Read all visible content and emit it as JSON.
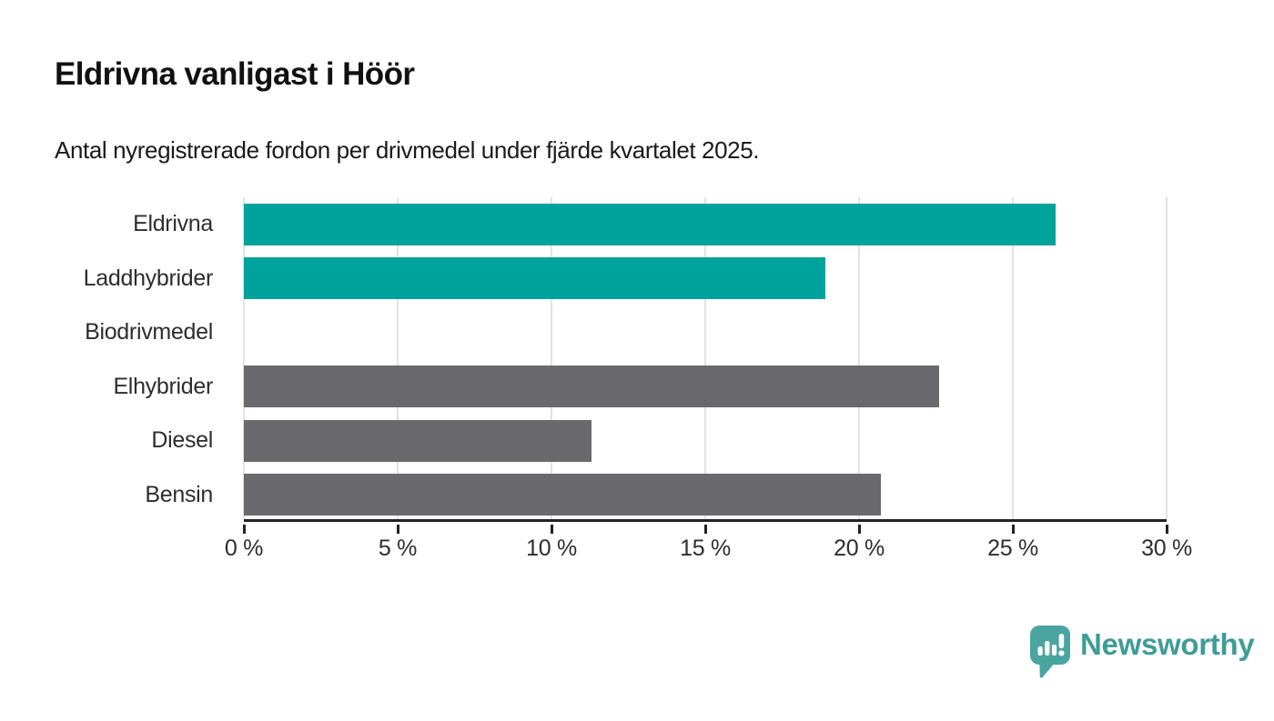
{
  "header": {
    "title": "Eldrivna vanligast i Höör",
    "subtitle": "Antal nyregistrerade fordon per drivmedel under fjärde kvartalet 2025."
  },
  "chart_data": {
    "type": "bar",
    "orientation": "horizontal",
    "title": "Eldrivna vanligast i Höör",
    "subtitle": "Antal nyregistrerade fordon per drivmedel under fjärde kvartalet 2025.",
    "categories": [
      "Eldrivna",
      "Laddhybrider",
      "Biodrivmedel",
      "Elhybrider",
      "Diesel",
      "Bensin"
    ],
    "values": [
      26.4,
      18.9,
      0,
      22.6,
      11.3,
      20.7
    ],
    "unit": "%",
    "bar_colors": [
      "#00a39b",
      "#00a39b",
      "#00a39b",
      "#6a6a6e",
      "#6a6a6e",
      "#6a6a6e"
    ],
    "highlight_color": "#00a39b",
    "default_color": "#6a6a6e",
    "xlim": [
      0,
      30
    ],
    "x_ticks": [
      0,
      5,
      10,
      15,
      20,
      25,
      30
    ],
    "x_tick_labels": [
      "0 %",
      "5 %",
      "10 %",
      "15 %",
      "20 %",
      "25 %",
      "30 %"
    ],
    "xlabel": "",
    "ylabel": "",
    "grid": "vertical",
    "gridline_color": "#e2e2e2",
    "axis_color": "#222222",
    "legend": "none"
  },
  "footer": {
    "brand": "Newsworthy",
    "brand_text_color": "#3f9c96",
    "brand_mark_color": "#4aa5a0"
  }
}
